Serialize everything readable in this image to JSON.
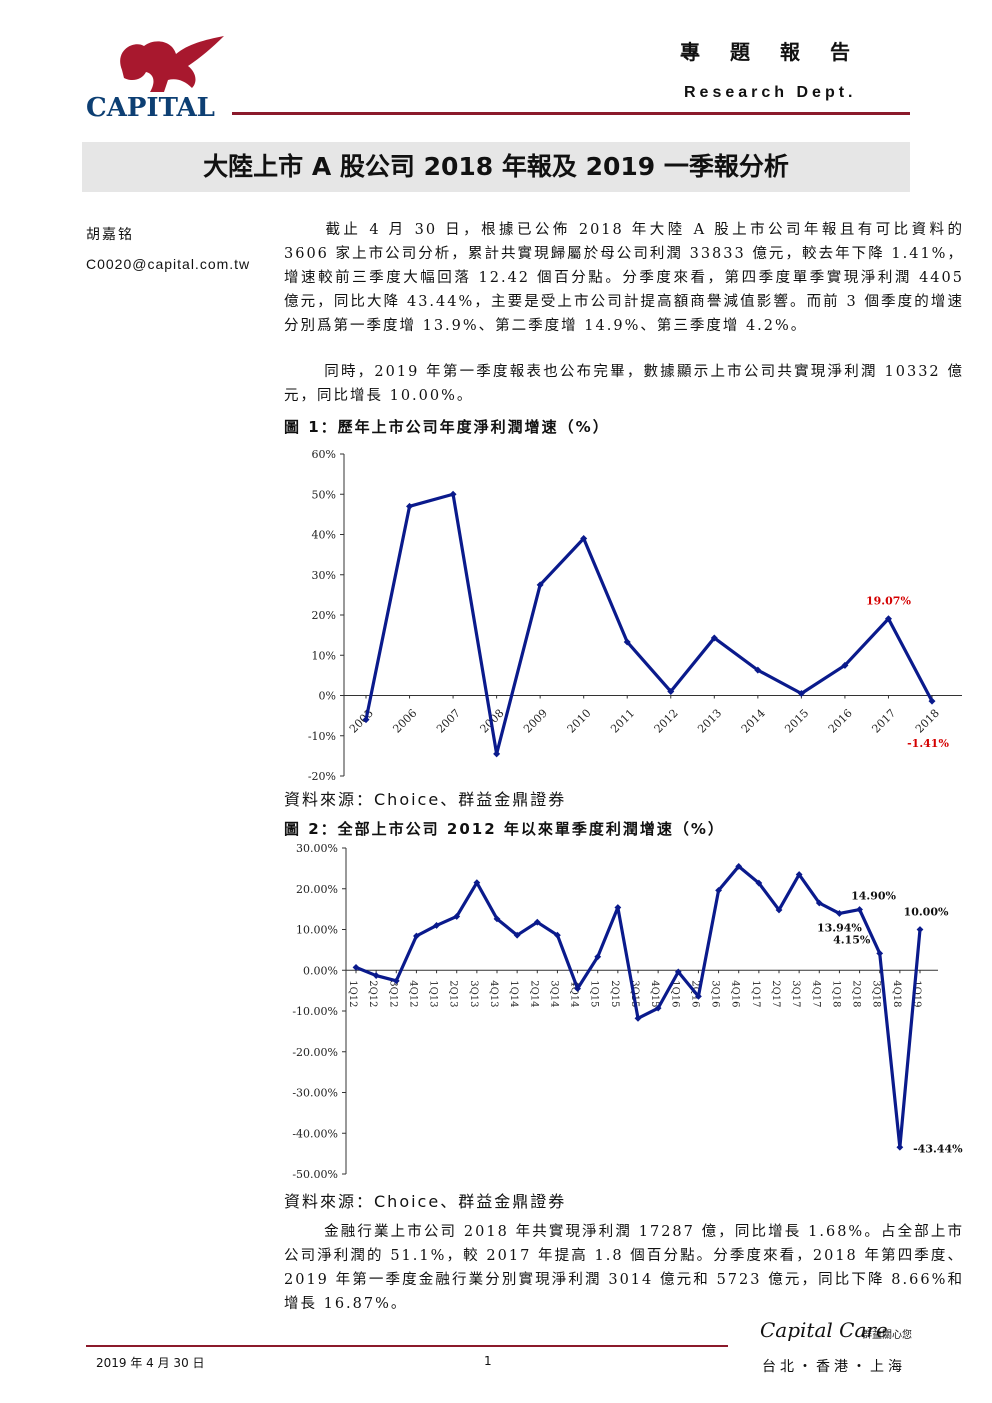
{
  "header": {
    "logo_text": "CAPITAL",
    "title_cn": "專題報告",
    "title_en": "Research Dept."
  },
  "report_title": "大陸上市 A 股公司 2018 年報及 2019 一季報分析",
  "author": {
    "name": "胡嘉铭",
    "email": "C0020@capital.com.tw"
  },
  "paragraphs": {
    "p1": "截止 4 月 30 日，根據已公佈 2018 年大陸 A 股上市公司年報且有可比資料的 3606 家上市公司分析，累計共實現歸屬於母公司利潤 33833 億元，較去年下降 1.41%，增速較前三季度大幅回落 12.42 個百分點。分季度來看，第四季度單季實現淨利潤 4405 億元，同比大降 43.44%，主要是受上市公司計提高額商譽減值影響。而前 3 個季度的增速分別爲第一季度增 13.9%、第二季度增 14.9%、第三季度增 4.2%。",
    "p2": "同時，2019 年第一季度報表也公布完畢，數據顯示上市公司共實現淨利潤 10332 億元，同比增長 10.00%。",
    "p3": "金融行業上市公司 2018 年共實現淨利潤 17287 億，同比增長 1.68%。占全部上市公司淨利潤的 51.1%，較 2017 年提高 1.8 個百分點。分季度來看，2018 年第四季度、2019 年第一季度金融行業分別實現淨利潤 3014 億元和 5723 億元，同比下降 8.66%和增長 16.87%。"
  },
  "figures": {
    "f1_title": "圖 1：歷年上市公司年度淨利潤增速（%）",
    "f1_source": "資料來源：Choice、群益金鼎證券",
    "f2_title": "圖 2：全部上市公司 2012 年以來單季度利潤增速（%）",
    "f2_source": "資料來源：Choice、群益金鼎證券"
  },
  "chart_data": [
    {
      "type": "line",
      "color": "#0a1a8c",
      "categories": [
        "2005",
        "2006",
        "2007",
        "2008",
        "2009",
        "2010",
        "2011",
        "2012",
        "2013",
        "2014",
        "2015",
        "2016",
        "2017",
        "2018"
      ],
      "values": [
        -6,
        47,
        50,
        -14.5,
        27.5,
        39,
        13.3,
        1,
        14.3,
        6.3,
        0.5,
        7.5,
        19.07,
        -1.41
      ],
      "ylim": [
        -20,
        60
      ],
      "yticks": [
        "60%",
        "50%",
        "40%",
        "30%",
        "20%",
        "10%",
        "0%",
        "-10%",
        "-20%"
      ],
      "annotations": [
        {
          "label": "19.07%",
          "color": "#d40000"
        },
        {
          "label": "-1.41%",
          "color": "#d40000"
        }
      ]
    },
    {
      "type": "line",
      "color": "#0a1a8c",
      "categories": [
        "1Q12",
        "2Q12",
        "3Q12",
        "4Q12",
        "1Q13",
        "2Q13",
        "3Q13",
        "4Q13",
        "1Q14",
        "2Q14",
        "3Q14",
        "4Q14",
        "1Q15",
        "2Q15",
        "3Q15",
        "4Q15",
        "1Q16",
        "2Q16",
        "3Q16",
        "4Q16",
        "1Q17",
        "2Q17",
        "3Q17",
        "4Q17",
        "1Q18",
        "2Q18",
        "3Q18",
        "4Q18",
        "1Q19"
      ],
      "values": [
        0.7,
        -1.3,
        -2.6,
        8.4,
        11,
        13.2,
        21.5,
        12.6,
        8.6,
        11.8,
        8.6,
        -4.5,
        3.3,
        15.4,
        -11.8,
        -9.3,
        -0.4,
        -6.4,
        19.6,
        25.5,
        21.4,
        14.8,
        23.5,
        16.5,
        13.94,
        14.9,
        4.15,
        -43.44,
        10.0
      ],
      "ylim": [
        -50,
        30
      ],
      "yticks": [
        "30.00%",
        "20.00%",
        "10.00%",
        "0.00%",
        "-10.00%",
        "-20.00%",
        "-30.00%",
        "-40.00%",
        "-50.00%"
      ],
      "annotations": [
        {
          "label": "13.94%"
        },
        {
          "label": "14.90%"
        },
        {
          "label": "4.15%"
        },
        {
          "label": "10.00%"
        },
        {
          "label": "-43.44%"
        }
      ]
    }
  ],
  "footer": {
    "date": "2019 年 4 月 30 日",
    "page": "1",
    "brand": "Capital Care",
    "brand_cn": "群益關心您",
    "cities": "台北・香港・上海"
  }
}
